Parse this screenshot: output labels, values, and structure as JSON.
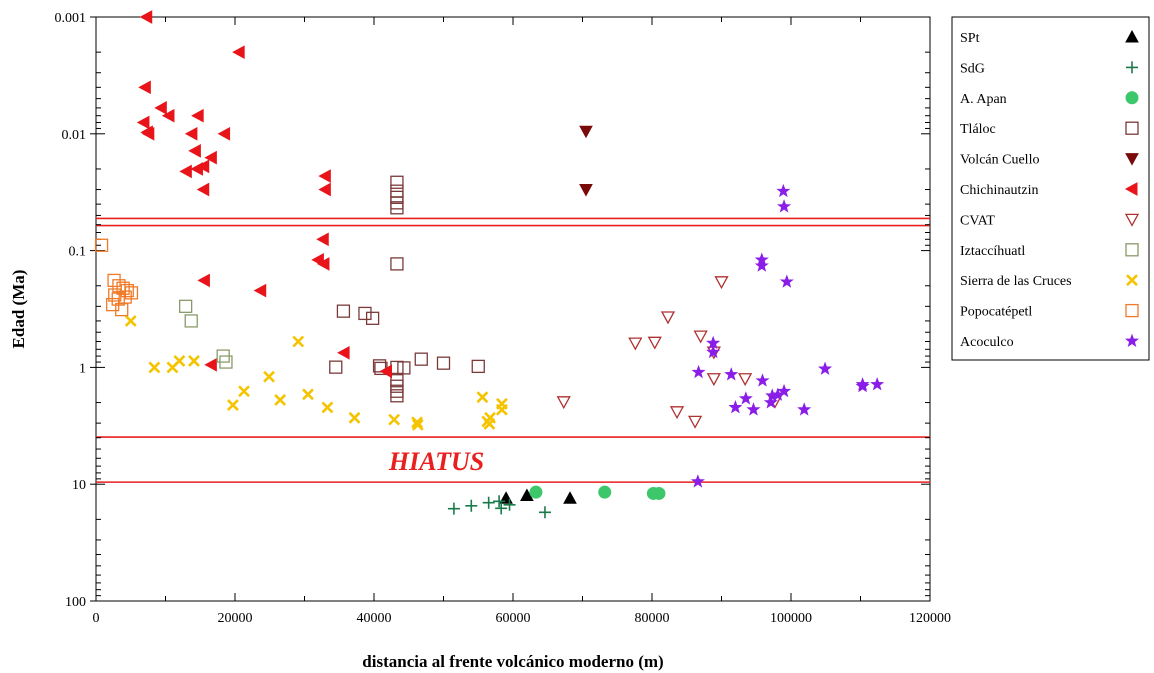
{
  "chart_data": {
    "type": "scatter",
    "title": "",
    "xlabel": "distancia al frente volcánico moderno (m)",
    "ylabel": "Edad (Ma)",
    "xlim": [
      0,
      120000
    ],
    "ylim": [
      0.001,
      100
    ],
    "y_scale": "log",
    "y_inverted": true,
    "x_ticks": [
      0,
      20000,
      40000,
      60000,
      80000,
      100000,
      120000
    ],
    "x_tick_labels": [
      "0",
      "20000",
      "40000",
      "60000",
      "80000",
      "100000",
      "120000"
    ],
    "y_ticks": [
      0.001,
      0.01,
      0.1,
      1,
      10,
      100
    ],
    "y_tick_labels": [
      "0.001",
      "0.01",
      "0.1",
      "1",
      "10",
      "100"
    ],
    "grid": false,
    "legend_position": "right",
    "reference_lines": [
      {
        "y": 0.053,
        "color": "#e8201f"
      },
      {
        "y": 0.061,
        "color": "#e8201f"
      },
      {
        "y": 3.95,
        "color": "#e8201f"
      },
      {
        "y": 9.6,
        "color": "#e8201f"
      }
    ],
    "annotations": [
      {
        "text": "HIATUS",
        "x": 49000,
        "y": 6.3,
        "color": "#e8201f"
      }
    ],
    "series": [
      {
        "name": "SPt",
        "marker": "triangle-up",
        "color": "#000000",
        "filled": true,
        "points": [
          [
            59000,
            13.2
          ],
          [
            62000,
            12.5
          ],
          [
            68200,
            13.2
          ]
        ]
      },
      {
        "name": "SdG",
        "marker": "plus",
        "color": "#1a7a4a",
        "filled": true,
        "points": [
          [
            51500,
            16.2
          ],
          [
            54000,
            15.3
          ],
          [
            56500,
            14.4
          ],
          [
            58000,
            14.0
          ],
          [
            58300,
            16.1
          ],
          [
            59500,
            15.0
          ],
          [
            64600,
            17.4
          ]
        ]
      },
      {
        "name": "A. Apan",
        "marker": "circle",
        "color": "#3cc86a",
        "filled": true,
        "points": [
          [
            63300,
            11.7
          ],
          [
            73200,
            11.7
          ],
          [
            80200,
            12.0
          ],
          [
            81000,
            12.0
          ]
        ]
      },
      {
        "name": "Tláloc",
        "marker": "square",
        "color": "#7a3a3a",
        "filled": false,
        "points": [
          [
            43300,
            0.026
          ],
          [
            43300,
            0.031
          ],
          [
            43300,
            0.035
          ],
          [
            43300,
            0.039
          ],
          [
            43300,
            0.043
          ],
          [
            43300,
            0.13
          ],
          [
            35600,
            0.33
          ],
          [
            38700,
            0.345
          ],
          [
            39800,
            0.38
          ],
          [
            34500,
            0.995
          ],
          [
            40800,
            0.97
          ],
          [
            41000,
            1.02
          ],
          [
            43300,
            1.0
          ],
          [
            44300,
            1.01
          ],
          [
            46800,
            0.85
          ],
          [
            50000,
            0.92
          ],
          [
            55000,
            0.98
          ],
          [
            43300,
            1.3
          ],
          [
            43300,
            1.45
          ],
          [
            43300,
            1.6
          ],
          [
            43300,
            1.75
          ]
        ]
      },
      {
        "name": "Volcán Cuello",
        "marker": "triangle-down",
        "color": "#7a0a0a",
        "filled": true,
        "points": [
          [
            70500,
            0.0095
          ],
          [
            70500,
            0.03
          ]
        ]
      },
      {
        "name": "Chichinautzin",
        "marker": "triangle-left",
        "color": "#e8141a",
        "filled": true,
        "points": [
          [
            7300,
            0.001
          ],
          [
            20600,
            0.002
          ],
          [
            7100,
            0.004
          ],
          [
            9400,
            0.006
          ],
          [
            10500,
            0.007
          ],
          [
            14700,
            0.007
          ],
          [
            6900,
            0.008
          ],
          [
            7400,
            0.0097
          ],
          [
            7600,
            0.01
          ],
          [
            13800,
            0.01
          ],
          [
            18500,
            0.01
          ],
          [
            14300,
            0.014
          ],
          [
            16600,
            0.016
          ],
          [
            15500,
            0.019
          ],
          [
            14600,
            0.02
          ],
          [
            13000,
            0.021
          ],
          [
            15500,
            0.03
          ],
          [
            33000,
            0.023
          ],
          [
            33000,
            0.03
          ],
          [
            32700,
            0.08
          ],
          [
            15600,
            0.18
          ],
          [
            32000,
            0.12
          ],
          [
            32800,
            0.13
          ],
          [
            23700,
            0.22
          ],
          [
            35700,
            0.75
          ],
          [
            16600,
            0.95
          ],
          [
            41800,
            1.08
          ]
        ]
      },
      {
        "name": "CVAT",
        "marker": "triangle-down",
        "color": "#b03030",
        "filled": false,
        "points": [
          [
            90000,
            0.185
          ],
          [
            82300,
            0.37
          ],
          [
            87000,
            0.54
          ],
          [
            77600,
            0.62
          ],
          [
            80400,
            0.61
          ],
          [
            88900,
            0.74
          ],
          [
            88900,
            1.25
          ],
          [
            93400,
            1.25
          ],
          [
            97700,
            1.95
          ],
          [
            67300,
            1.97
          ],
          [
            83600,
            2.4
          ],
          [
            86200,
            2.9
          ]
        ]
      },
      {
        "name": "Iztaccíhuatl",
        "marker": "square",
        "color": "#8a9a6a",
        "filled": false,
        "points": [
          [
            12900,
            0.3
          ],
          [
            13700,
            0.4
          ],
          [
            18300,
            0.8
          ],
          [
            18700,
            0.9
          ]
        ]
      },
      {
        "name": "Sierra de las Cruces",
        "marker": "x",
        "color": "#f5c400",
        "filled": true,
        "points": [
          [
            5000,
            0.4
          ],
          [
            29100,
            0.6
          ],
          [
            8400,
            1.0
          ],
          [
            11000,
            1.0
          ],
          [
            12000,
            0.88
          ],
          [
            14100,
            0.88
          ],
          [
            24900,
            1.2
          ],
          [
            19700,
            2.1
          ],
          [
            21300,
            1.6
          ],
          [
            26500,
            1.9
          ],
          [
            30500,
            1.7
          ],
          [
            33300,
            2.2
          ],
          [
            37200,
            2.7
          ],
          [
            42900,
            2.8
          ],
          [
            46200,
            2.95
          ],
          [
            46300,
            3.1
          ],
          [
            55600,
            1.8
          ],
          [
            56700,
            2.7
          ],
          [
            56300,
            2.9
          ],
          [
            56600,
            3.05
          ],
          [
            58400,
            2.05
          ],
          [
            58400,
            2.3
          ]
        ]
      },
      {
        "name": "Popocatépetl",
        "marker": "square",
        "color": "#f07a28",
        "filled": false,
        "points": [
          [
            800,
            0.09
          ],
          [
            2600,
            0.18
          ],
          [
            3300,
            0.2
          ],
          [
            3900,
            0.21
          ],
          [
            4500,
            0.22
          ],
          [
            5100,
            0.23
          ],
          [
            2700,
            0.24
          ],
          [
            4200,
            0.25
          ],
          [
            3200,
            0.26
          ],
          [
            2400,
            0.29
          ],
          [
            3700,
            0.32
          ]
        ]
      },
      {
        "name": "Acoculco",
        "marker": "star",
        "color": "#8a1ee8",
        "filled": true,
        "points": [
          [
            98900,
            0.031
          ],
          [
            99000,
            0.042
          ],
          [
            95800,
            0.12
          ],
          [
            95800,
            0.135
          ],
          [
            99400,
            0.185
          ],
          [
            88800,
            0.62
          ],
          [
            88800,
            0.74
          ],
          [
            86700,
            1.1
          ],
          [
            91400,
            1.15
          ],
          [
            95900,
            1.3
          ],
          [
            99000,
            1.6
          ],
          [
            98100,
            1.72
          ],
          [
            97300,
            1.75
          ],
          [
            93500,
            1.85
          ],
          [
            97100,
            2.0
          ],
          [
            92000,
            2.2
          ],
          [
            94600,
            2.3
          ],
          [
            101900,
            2.3
          ],
          [
            104900,
            1.03
          ],
          [
            110300,
            1.4
          ],
          [
            110300,
            1.45
          ],
          [
            112400,
            1.4
          ],
          [
            86600,
            9.5
          ]
        ]
      }
    ]
  }
}
